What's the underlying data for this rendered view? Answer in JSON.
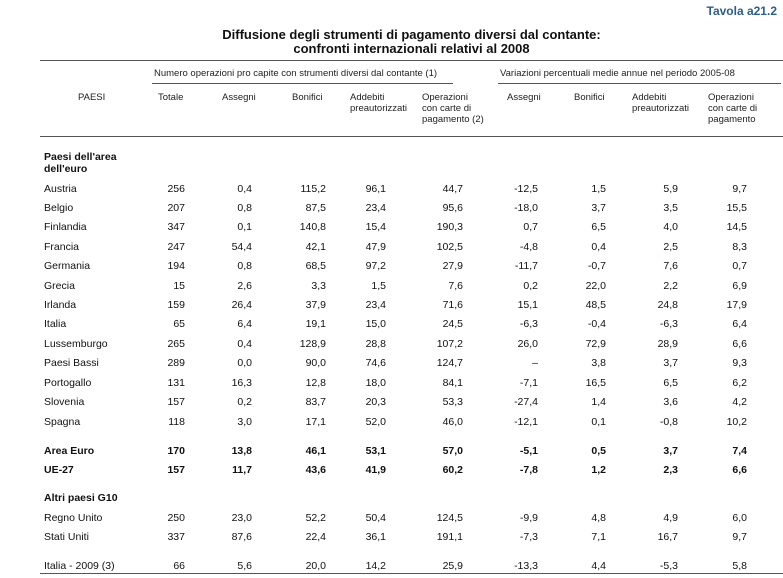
{
  "tavola": "Tavola a21.2",
  "title_line1": "Diffusione degli strumenti di pagamento diversi dal contante:",
  "title_line2": "confronti internazionali relativi al 2008",
  "group1": "Numero operazioni pro capite con strumenti diversi dal contante (1)",
  "group2": "Variazioni percentuali medie annue nel periodo 2005-08",
  "headers": {
    "paesi": "PAESI",
    "totale": "Totale",
    "assegni": "Assegni",
    "bonifici": "Bonifici",
    "addebiti1": "Addebiti",
    "addebiti2": "preautorizzati",
    "oper1": "Operazioni",
    "oper2": "con carte di",
    "oper3": "pagamento (2)",
    "v_assegni": "Assegni",
    "v_bonifici": "Bonifici",
    "v_addebiti1": "Addebiti",
    "v_addebiti2": "preautorizzati",
    "v_oper1": "Operazioni",
    "v_oper2": "con carte di",
    "v_oper3": "pagamento"
  },
  "section1_line1": "Paesi dell'area",
  "section1_line2": "dell'euro",
  "section2": "Altri paesi G10",
  "rows": [
    [
      "Austria",
      "256",
      "0,4",
      "115,2",
      "96,1",
      "44,7",
      "-12,5",
      "1,5",
      "5,9",
      "9,7"
    ],
    [
      "Belgio",
      "207",
      "0,8",
      "87,5",
      "23,4",
      "95,6",
      "-18,0",
      "3,7",
      "3,5",
      "15,5"
    ],
    [
      "Finlandia",
      "347",
      "0,1",
      "140,8",
      "15,4",
      "190,3",
      "0,7",
      "6,5",
      "4,0",
      "14,5"
    ],
    [
      "Francia",
      "247",
      "54,4",
      "42,1",
      "47,9",
      "102,5",
      "-4,8",
      "0,4",
      "2,5",
      "8,3"
    ],
    [
      "Germania",
      "194",
      "0,8",
      "68,5",
      "97,2",
      "27,9",
      "-11,7",
      "-0,7",
      "7,6",
      "0,7"
    ],
    [
      "Grecia",
      "15",
      "2,6",
      "3,3",
      "1,5",
      "7,6",
      "0,2",
      "22,0",
      "2,2",
      "6,9"
    ],
    [
      "Irlanda",
      "159",
      "26,4",
      "37,9",
      "23,4",
      "71,6",
      "15,1",
      "48,5",
      "24,8",
      "17,9"
    ],
    [
      "Italia",
      "65",
      "6,4",
      "19,1",
      "15,0",
      "24,5",
      "-6,3",
      "-0,4",
      "-6,3",
      "6,4"
    ],
    [
      "Lussemburgo",
      "265",
      "0,4",
      "128,9",
      "28,8",
      "107,2",
      "26,0",
      "72,9",
      "28,9",
      "6,6"
    ],
    [
      "Paesi Bassi",
      "289",
      "0,0",
      "90,0",
      "74,6",
      "124,7",
      "–",
      "3,8",
      "3,7",
      "9,3"
    ],
    [
      "Portogallo",
      "131",
      "16,3",
      "12,8",
      "18,0",
      "84,1",
      "-7,1",
      "16,5",
      "6,5",
      "6,2"
    ],
    [
      "Slovenia",
      "157",
      "0,2",
      "83,7",
      "20,3",
      "53,3",
      "-27,4",
      "1,4",
      "3,6",
      "4,2"
    ],
    [
      "Spagna",
      "118",
      "3,0",
      "17,1",
      "52,0",
      "46,0",
      "-12,1",
      "0,1",
      "-0,8",
      "10,2"
    ],
    [
      "Area Euro",
      "170",
      "13,8",
      "46,1",
      "53,1",
      "57,0",
      "-5,1",
      "0,5",
      "3,7",
      "7,4"
    ],
    [
      "UE-27",
      "157",
      "11,7",
      "43,6",
      "41,9",
      "60,2",
      "-7,8",
      "1,2",
      "2,3",
      "6,6"
    ],
    [
      "Regno Unito",
      "250",
      "23,0",
      "52,2",
      "50,4",
      "124,5",
      "-9,9",
      "4,8",
      "4,9",
      "6,0"
    ],
    [
      "Stati Uniti",
      "337",
      "87,6",
      "22,4",
      "36,1",
      "191,1",
      "-7,3",
      "7,1",
      "16,7",
      "9,7"
    ],
    [
      "Italia - 2009 (3)",
      "66",
      "5,6",
      "20,0",
      "14,2",
      "25,9",
      "-13,3",
      "4,4",
      "-5,3",
      "5,8"
    ]
  ]
}
